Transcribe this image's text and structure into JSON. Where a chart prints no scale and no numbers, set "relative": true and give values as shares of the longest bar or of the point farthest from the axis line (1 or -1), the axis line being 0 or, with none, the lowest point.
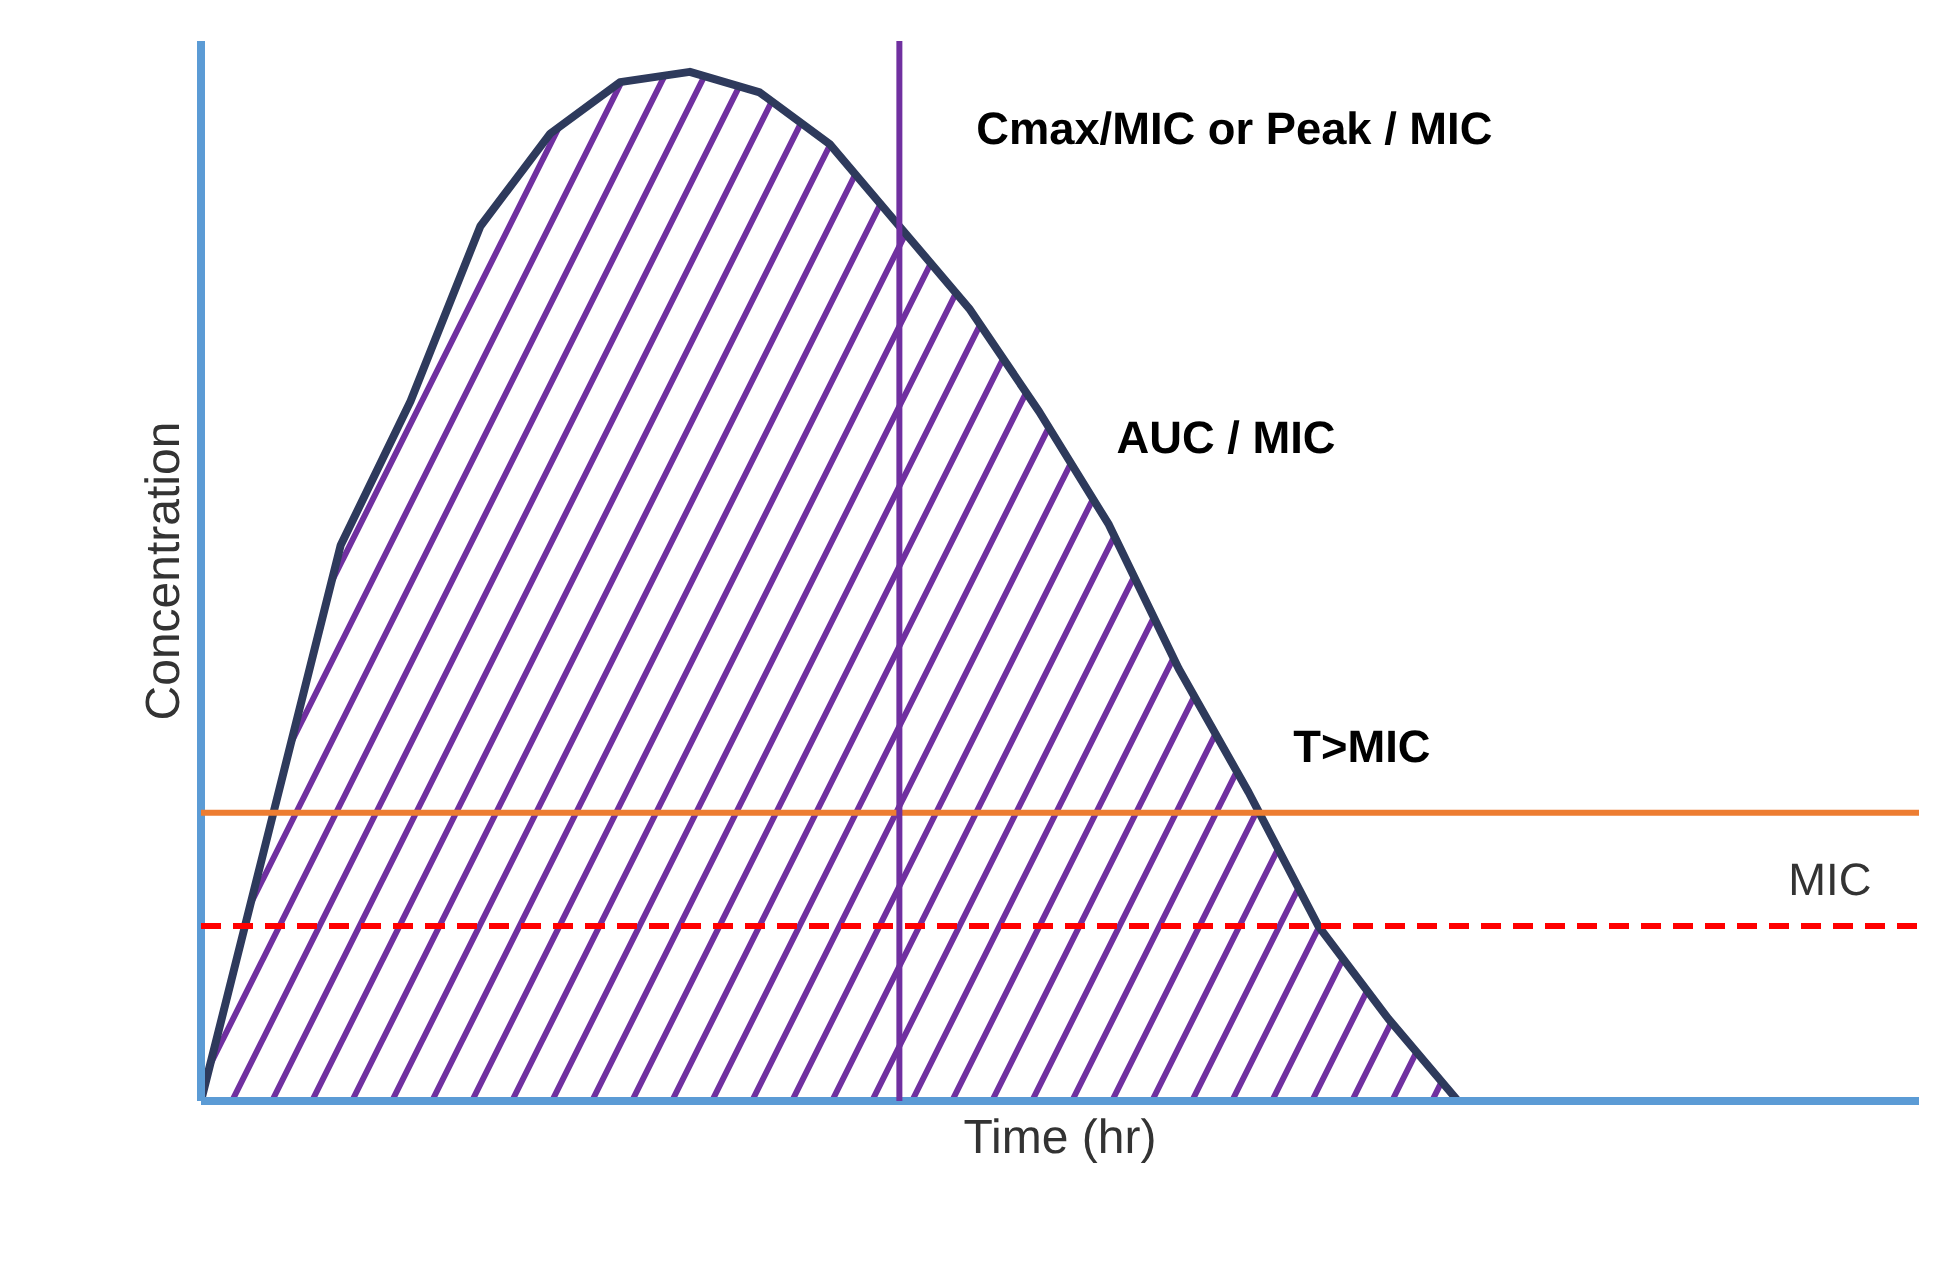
{
  "chart_data": {
    "type": "area",
    "relative": true,
    "xlabel": "Time (hr)",
    "ylabel": "Concentration",
    "categories": [
      null,
      null,
      null,
      null,
      null,
      null,
      null,
      null,
      null,
      null,
      null,
      null,
      null,
      null,
      null,
      null,
      null,
      null,
      null,
      null,
      null,
      null,
      null
    ],
    "series": [
      {
        "color": "#2e3a5c",
        "values": [
          0,
          0.27,
          0.54,
          0.68,
          0.85,
          0.94,
          0.99,
          1,
          0.98,
          0.93,
          0.85,
          0.77,
          0.67,
          0.56,
          0.42,
          0.3,
          0.17,
          0.08,
          0,
          null,
          null,
          null,
          null
        ]
      }
    ],
    "ref_lines": [
      {
        "axis": "y",
        "value": 0.28,
        "label": "T>MIC",
        "color": "#ed7d31",
        "line_style": "solid"
      },
      {
        "axis": "y",
        "value": 0.17,
        "label": "MIC",
        "color": "#ff0000",
        "line_style": "dashed"
      }
    ],
    "annotations": [
      "AUC / MIC",
      "Cmax/MIC or Peak / MIC"
    ]
  }
}
